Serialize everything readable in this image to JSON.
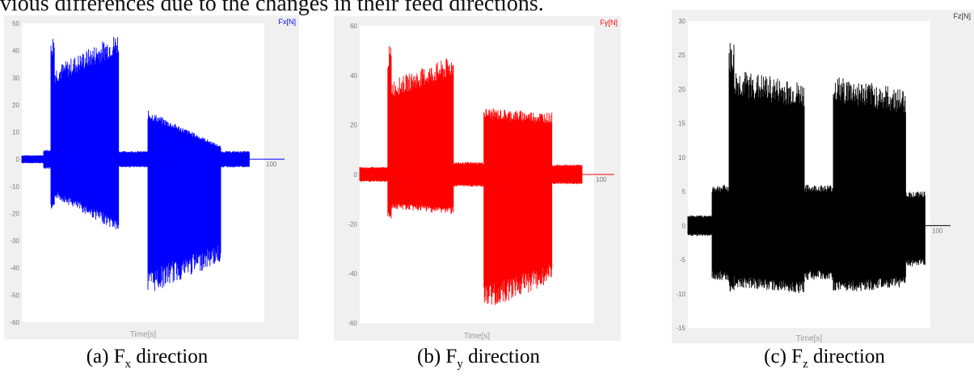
{
  "top_text": "vious differences due to the changes in their feed directions.",
  "chart_data": [
    {
      "type": "line",
      "ylabel": "Fx[N]",
      "xlabel": "Time[s]",
      "ylim": [
        -60,
        50
      ],
      "yticks": [
        50,
        40,
        30,
        20,
        10,
        0,
        -10,
        -20,
        -30,
        -40,
        -50,
        -60
      ],
      "xtick_label": "100",
      "color": "#0000ff",
      "caption": {
        "prefix": "(a) F",
        "sub": "x",
        "suffix": " direction"
      },
      "envelope": [
        {
          "x": [
            0,
            0.09
          ],
          "hi": 1.5,
          "lo": -1.5
        },
        {
          "x": [
            0.09,
            0.12
          ],
          "hi": 3.5,
          "lo": -3.5
        },
        {
          "x": [
            0.12,
            0.135
          ],
          "hi": 46,
          "lo": -20
        },
        {
          "x": [
            0.135,
            0.4
          ],
          "hi": [
            34,
            47
          ],
          "lo": [
            -14,
            -27
          ]
        },
        {
          "x": [
            0.4,
            0.52
          ],
          "hi": 3,
          "lo": -3
        },
        {
          "x": [
            0.52,
            0.82
          ],
          "hi": [
            18,
            5
          ],
          "lo": [
            -50,
            -38
          ]
        },
        {
          "x": [
            0.82,
            0.94
          ],
          "hi": 3,
          "lo": -3
        }
      ]
    },
    {
      "type": "line",
      "ylabel": "Fy[N]",
      "xlabel": "Time[s]",
      "ylim": [
        -60,
        60
      ],
      "yticks": [
        60,
        40,
        20,
        0,
        -20,
        -40,
        -60
      ],
      "xtick_label": "100",
      "color": "#ff0000",
      "caption": {
        "prefix": "(b) F",
        "sub": "y",
        "suffix": " direction"
      },
      "envelope": [
        {
          "x": [
            0,
            0.12
          ],
          "hi": 3,
          "lo": -3
        },
        {
          "x": [
            0.12,
            0.135
          ],
          "hi": 52,
          "lo": -18
        },
        {
          "x": [
            0.135,
            0.4
          ],
          "hi": [
            38,
            48
          ],
          "lo": [
            -14,
            -16
          ]
        },
        {
          "x": [
            0.4,
            0.53
          ],
          "hi": 5,
          "lo": -5
        },
        {
          "x": [
            0.53,
            0.82
          ],
          "hi": [
            27,
            25
          ],
          "lo": [
            -55,
            -44
          ]
        },
        {
          "x": [
            0.82,
            0.95
          ],
          "hi": 4,
          "lo": -4
        }
      ]
    },
    {
      "type": "line",
      "ylabel": "Fz[N]",
      "xlabel": "Time[s]",
      "ylim": [
        -15,
        30
      ],
      "yticks": [
        30,
        25,
        20,
        15,
        10,
        5,
        0,
        -5,
        -10,
        -15
      ],
      "xtick_label": "100",
      "color": "#000000",
      "caption": {
        "prefix": "(c) F",
        "sub": "z",
        "suffix": " direction"
      },
      "envelope": [
        {
          "x": [
            0,
            0.1
          ],
          "hi": 1.5,
          "lo": -1.5
        },
        {
          "x": [
            0.1,
            0.17
          ],
          "hi": 6,
          "lo": -8
        },
        {
          "x": [
            0.17,
            0.19
          ],
          "hi": 27,
          "lo": -10
        },
        {
          "x": [
            0.19,
            0.48
          ],
          "hi": [
            23,
            21
          ],
          "lo": [
            -9,
            -10
          ]
        },
        {
          "x": [
            0.48,
            0.6
          ],
          "hi": 6,
          "lo": -8
        },
        {
          "x": [
            0.6,
            0.9
          ],
          "hi": [
            22,
            20
          ],
          "lo": [
            -10,
            -9
          ]
        },
        {
          "x": [
            0.9,
            0.98
          ],
          "hi": 5,
          "lo": -6
        }
      ]
    }
  ]
}
